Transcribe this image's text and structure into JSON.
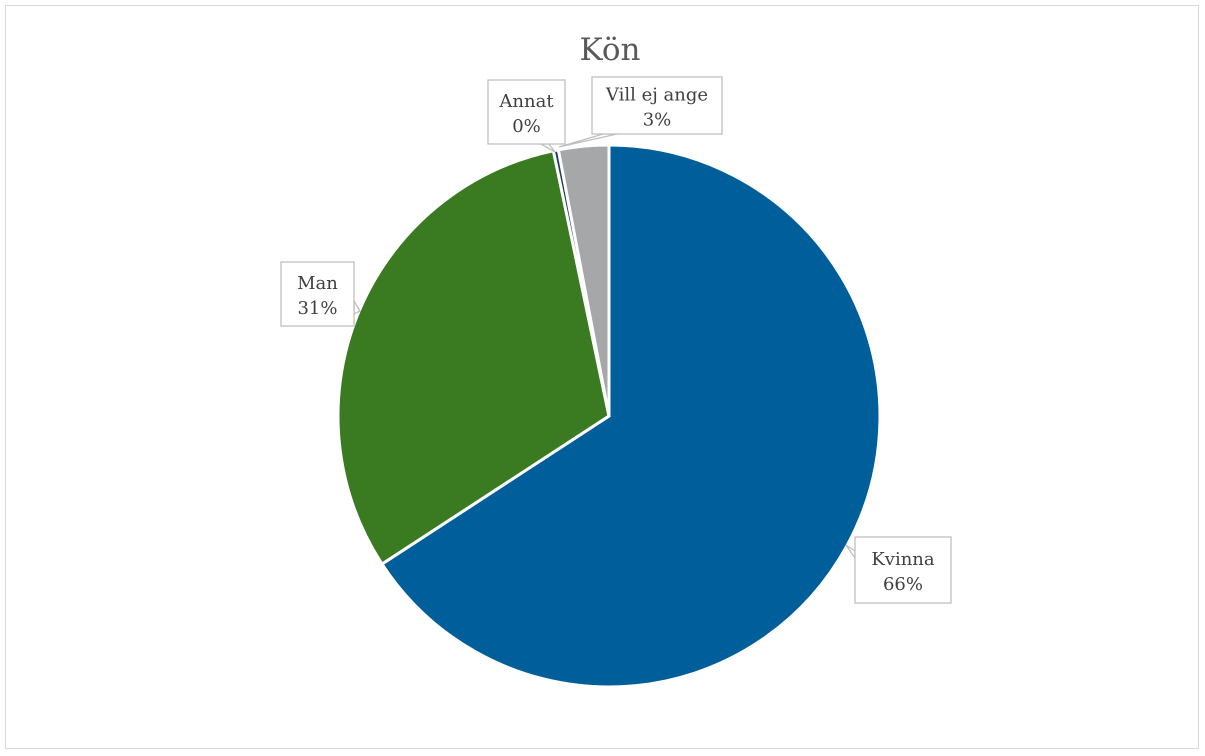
{
  "chart_data": {
    "type": "pie",
    "title": "Kön",
    "slices": [
      {
        "label": "Kvinna",
        "value": 66,
        "display": "66%",
        "color": "#005f9a"
      },
      {
        "label": "Man",
        "value": 31,
        "display": "31%",
        "color": "#3a7a21"
      },
      {
        "label": "Annat",
        "value": 0.3,
        "display": "0%",
        "color": "#1f3c60"
      },
      {
        "label": "Vill ej ange",
        "value": 3,
        "display": "3%",
        "color": "#a5a7a8"
      }
    ]
  }
}
